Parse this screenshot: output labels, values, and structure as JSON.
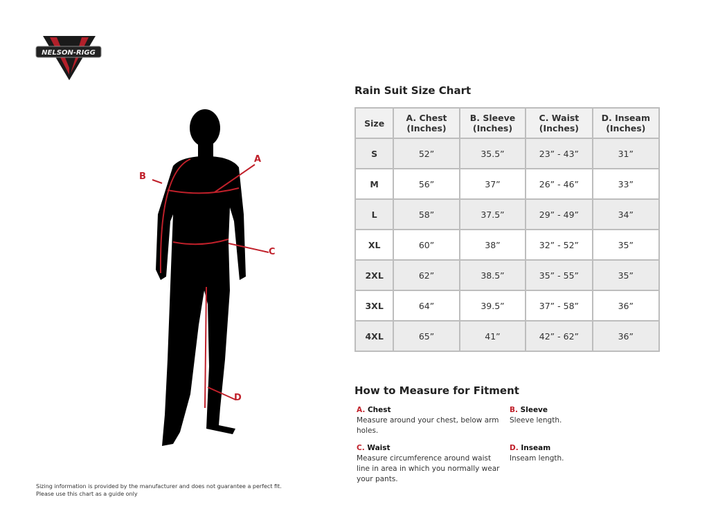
{
  "logo": {
    "text": "NELSON-RIGG"
  },
  "chart_title": "Rain Suit Size Chart",
  "table": {
    "headers": [
      [
        "Size",
        ""
      ],
      [
        "A. Chest",
        "(Inches)"
      ],
      [
        "B. Sleeve",
        "(Inches)"
      ],
      [
        "C. Waist",
        "(Inches)"
      ],
      [
        "D. Inseam",
        "(Inches)"
      ]
    ],
    "rows": [
      [
        "S",
        "52”",
        "35.5”",
        "23” - 43”",
        "31”"
      ],
      [
        "M",
        "56”",
        "37”",
        "26” - 46”",
        "33”"
      ],
      [
        "L",
        "58”",
        "37.5”",
        "29” - 49”",
        "34”"
      ],
      [
        "XL",
        "60”",
        "38”",
        "32” - 52”",
        "35”"
      ],
      [
        "2XL",
        "62”",
        "38.5”",
        "35” - 55”",
        "35”"
      ],
      [
        "3XL",
        "64”",
        "39.5”",
        "37” - 58”",
        "36”"
      ],
      [
        "4XL",
        "65”",
        "41”",
        "42” - 62”",
        "36”"
      ]
    ]
  },
  "figure_labels": {
    "a": "A",
    "b": "B",
    "c": "C",
    "d": "D"
  },
  "measure": {
    "title": "How to Measure for Fitment",
    "items": [
      {
        "letter": "A.",
        "name": "Chest",
        "desc": "Measure around your chest, below arm holes."
      },
      {
        "letter": "B.",
        "name": "Sleeve",
        "desc": "Sleeve length."
      },
      {
        "letter": "C.",
        "name": "Waist",
        "desc": "Measure circumference around waist line in area in which you normally wear your pants."
      },
      {
        "letter": "D.",
        "name": "Inseam",
        "desc": "Inseam length."
      }
    ]
  },
  "disclaimer": {
    "line1": "Sizing information is provided by the manufacturer and does not guarantee a perfect fit.",
    "line2": "Please use this chart as a guide only"
  },
  "colors": {
    "accent": "#c0202a",
    "border": "#bdbdbd",
    "row_shade": "#ececec"
  }
}
